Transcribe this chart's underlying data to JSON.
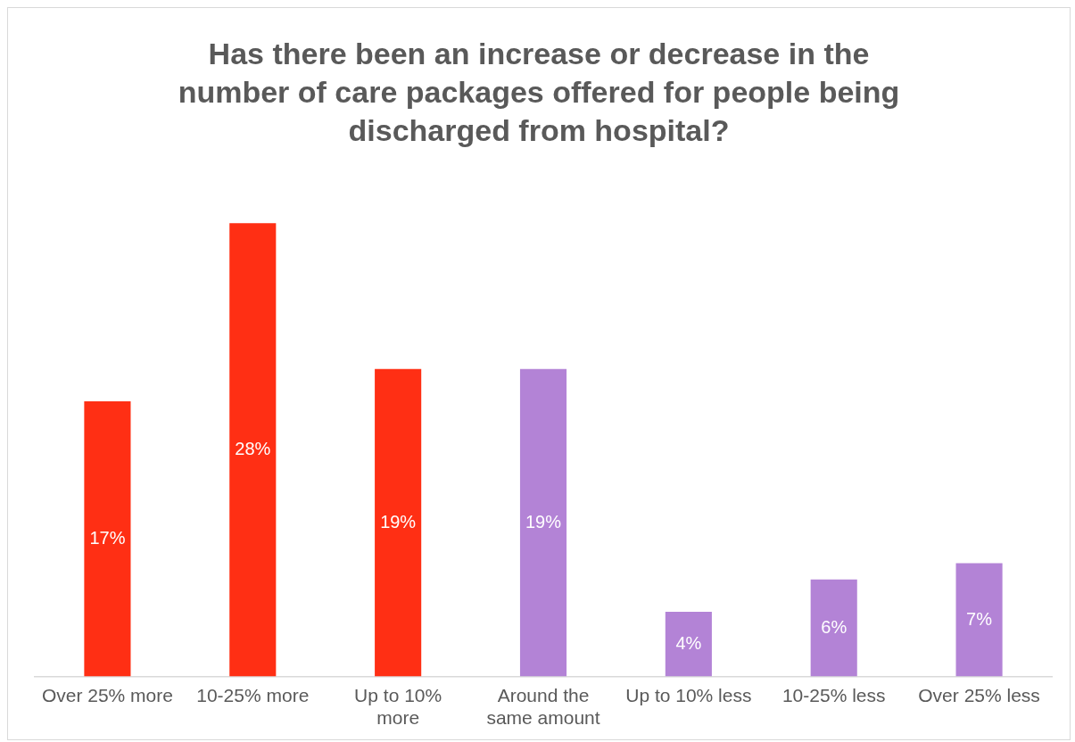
{
  "chart_data": {
    "type": "bar",
    "title": "Has there been an increase or decrease in the number of care packages offered for people being discharged from hospital?",
    "categories": [
      "Over 25% more",
      "10-25% more",
      "Up to 10% more",
      "Around the same amount",
      "Up to 10% less",
      "10-25% less",
      "Over 25% less"
    ],
    "values": [
      17,
      28,
      19,
      19,
      4,
      6,
      7
    ],
    "value_labels": [
      "17%",
      "28%",
      "19%",
      "19%",
      "4%",
      "6%",
      "7%"
    ],
    "colors": [
      "#ff2f14",
      "#ff2f14",
      "#ff2f14",
      "#b383d6",
      "#b383d6",
      "#b383d6",
      "#b383d6"
    ],
    "tick_labels": "x"
  }
}
